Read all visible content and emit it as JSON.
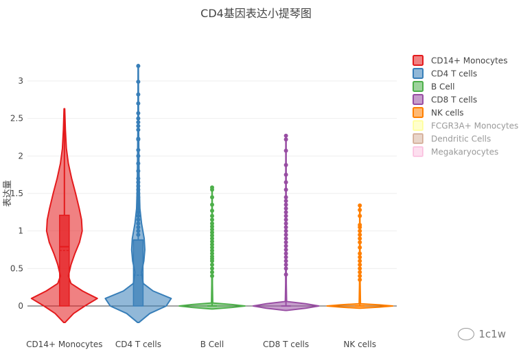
{
  "chart_data": {
    "type": "violin",
    "title": "CD4基因表达小提琴图",
    "xlabel": "",
    "ylabel": "表达量",
    "ylim": [
      -0.25,
      3.22
    ],
    "yticks": [
      0,
      0.5,
      1,
      1.5,
      2,
      2.5,
      3
    ],
    "ytick_labels": [
      "0",
      "0.5",
      "1",
      "1.5",
      "2",
      "2.5",
      "3"
    ],
    "categories": [
      "CD14+ Monocytes",
      "CD4 T cells",
      "B Cell",
      "CD8 T cells",
      "NK cells"
    ],
    "legend_position": "top-right",
    "series": [
      {
        "name": "CD14+ Monocytes",
        "color": "#e41a1c",
        "visible": true,
        "box": {
          "q1": 0,
          "median": 0.79,
          "q3": 1.21,
          "mean": 0.74
        },
        "max": 2.63,
        "outliers": [],
        "density": [
          [
            -0.22,
            0.02
          ],
          [
            -0.1,
            0.28
          ],
          [
            0,
            0.62
          ],
          [
            0.1,
            1.0
          ],
          [
            0.2,
            0.55
          ],
          [
            0.3,
            0.2
          ],
          [
            0.4,
            0.12
          ],
          [
            0.55,
            0.2
          ],
          [
            0.7,
            0.32
          ],
          [
            0.85,
            0.46
          ],
          [
            1.0,
            0.54
          ],
          [
            1.15,
            0.52
          ],
          [
            1.3,
            0.45
          ],
          [
            1.5,
            0.34
          ],
          [
            1.7,
            0.22
          ],
          [
            1.9,
            0.12
          ],
          [
            2.1,
            0.06
          ],
          [
            2.35,
            0.03
          ],
          [
            2.63,
            0.01
          ]
        ]
      },
      {
        "name": "CD4 T cells",
        "color": "#377eb8",
        "visible": true,
        "box": {
          "q1": 0,
          "median": 0.88,
          "q3": 0.88,
          "mean": 0.41
        },
        "max": 3.22,
        "outliers": [
          0.95,
          1.0,
          1.05,
          1.1,
          1.15,
          1.2,
          1.25,
          1.3,
          1.35,
          1.4,
          1.45,
          1.5,
          1.55,
          1.6,
          1.65,
          1.7,
          1.8,
          1.9,
          2.0,
          2.08,
          2.22,
          2.23,
          2.35,
          2.4,
          2.45,
          2.5,
          2.57,
          2.7,
          2.82,
          2.99,
          3.2
        ],
        "density": [
          [
            -0.22,
            0.02
          ],
          [
            -0.1,
            0.35
          ],
          [
            0,
            0.85
          ],
          [
            0.1,
            1.0
          ],
          [
            0.2,
            0.45
          ],
          [
            0.3,
            0.15
          ],
          [
            0.45,
            0.1
          ],
          [
            0.6,
            0.17
          ],
          [
            0.75,
            0.2
          ],
          [
            0.9,
            0.18
          ],
          [
            1.1,
            0.1
          ],
          [
            1.3,
            0.05
          ],
          [
            1.6,
            0.03
          ],
          [
            2.0,
            0.02
          ],
          [
            2.5,
            0.01
          ],
          [
            3.22,
            0.005
          ]
        ]
      },
      {
        "name": "B Cell",
        "color": "#4daf4a",
        "visible": true,
        "box": {
          "q1": 0,
          "median": 0,
          "q3": 0,
          "mean": 0
        },
        "max": 1.58,
        "outliers": [
          0.4,
          0.45,
          0.5,
          0.55,
          0.6,
          0.63,
          0.66,
          0.7,
          0.74,
          0.78,
          0.82,
          0.86,
          0.9,
          0.94,
          0.98,
          1.02,
          1.06,
          1.1,
          1.15,
          1.2,
          1.27,
          1.35,
          1.45,
          1.55,
          1.58
        ],
        "density": [
          [
            -0.04,
            0.02
          ],
          [
            -0.02,
            0.6
          ],
          [
            0,
            1.0
          ],
          [
            0.02,
            0.6
          ],
          [
            0.04,
            0.02
          ],
          [
            0.3,
            0.01
          ],
          [
            1.58,
            0.005
          ]
        ]
      },
      {
        "name": "CD8 T cells",
        "color": "#984ea3",
        "visible": true,
        "box": {
          "q1": 0,
          "median": 0,
          "q3": 0,
          "mean": 0
        },
        "max": 2.27,
        "outliers": [
          0.42,
          0.5,
          0.55,
          0.6,
          0.65,
          0.7,
          0.75,
          0.8,
          0.85,
          0.9,
          0.95,
          1.0,
          1.05,
          1.1,
          1.15,
          1.2,
          1.25,
          1.3,
          1.35,
          1.4,
          1.45,
          1.55,
          1.65,
          1.75,
          1.88,
          2.07,
          2.22,
          2.27
        ],
        "density": [
          [
            -0.06,
            0.02
          ],
          [
            -0.03,
            0.6
          ],
          [
            0,
            1.0
          ],
          [
            0.03,
            0.6
          ],
          [
            0.06,
            0.02
          ],
          [
            0.3,
            0.01
          ],
          [
            2.27,
            0.005
          ]
        ]
      },
      {
        "name": "NK cells",
        "color": "#ff7f00",
        "visible": true,
        "box": {
          "q1": 0,
          "median": 0,
          "q3": 0,
          "mean": 0
        },
        "max": 1.34,
        "outliers": [
          0.35,
          0.4,
          0.45,
          0.5,
          0.55,
          0.6,
          0.65,
          0.7,
          0.78,
          0.85,
          0.9,
          0.95,
          1.0,
          1.05,
          1.08,
          1.2,
          1.28,
          1.34
        ],
        "density": [
          [
            -0.03,
            0.02
          ],
          [
            -0.015,
            0.6
          ],
          [
            0,
            1.0
          ],
          [
            0.015,
            0.6
          ],
          [
            0.03,
            0.02
          ],
          [
            0.3,
            0.01
          ],
          [
            1.34,
            0.005
          ]
        ]
      },
      {
        "name": "FCGR3A+ Monocytes",
        "color": "#ffff33",
        "visible": false
      },
      {
        "name": "Dendritic Cells",
        "color": "#a65628",
        "visible": false
      },
      {
        "name": "Megakaryocytes",
        "color": "#f781bf",
        "visible": false
      }
    ]
  },
  "watermark": "1c1w"
}
